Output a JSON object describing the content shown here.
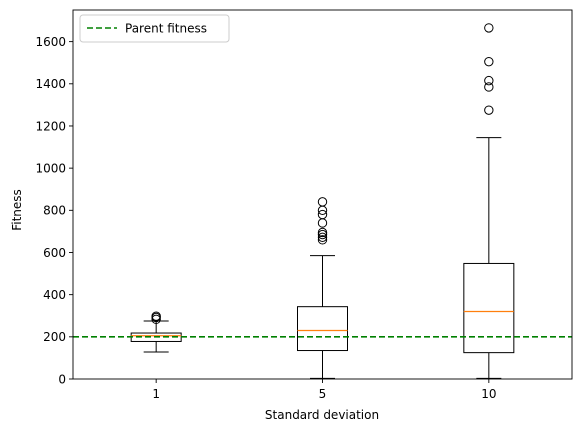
{
  "chart_data": {
    "type": "boxplot",
    "title": "",
    "xlabel": "Standard deviation",
    "ylabel": "Fitness",
    "categories": [
      "1",
      "5",
      "10"
    ],
    "ylim": [
      0,
      1750
    ],
    "yticks": [
      0,
      200,
      400,
      600,
      800,
      1000,
      1200,
      1400,
      1600
    ],
    "grid": false,
    "legend": {
      "position": "top-left",
      "entries": [
        "Parent fitness"
      ]
    },
    "boxes": [
      {
        "category": "1",
        "whisker_low": 128,
        "q1": 178,
        "median": 205,
        "q3": 218,
        "whisker_high": 275,
        "outliers": [
          283,
          292,
          298
        ]
      },
      {
        "category": "5",
        "whisker_low": 3,
        "q1": 135,
        "median": 230,
        "q3": 343,
        "whisker_high": 585,
        "outliers": [
          660,
          672,
          685,
          695,
          740,
          780,
          800,
          840
        ]
      },
      {
        "category": "10",
        "whisker_low": 3,
        "q1": 125,
        "median": 320,
        "q3": 548,
        "whisker_high": 1145,
        "outliers": [
          1275,
          1385,
          1415,
          1505,
          1665
        ]
      }
    ],
    "reference_line": {
      "name": "Parent fitness",
      "value": 200,
      "style": "dashed",
      "color": "#008000"
    },
    "colors": {
      "box": "#000000",
      "median": "#ff7f0e",
      "reference": "#008000"
    }
  }
}
